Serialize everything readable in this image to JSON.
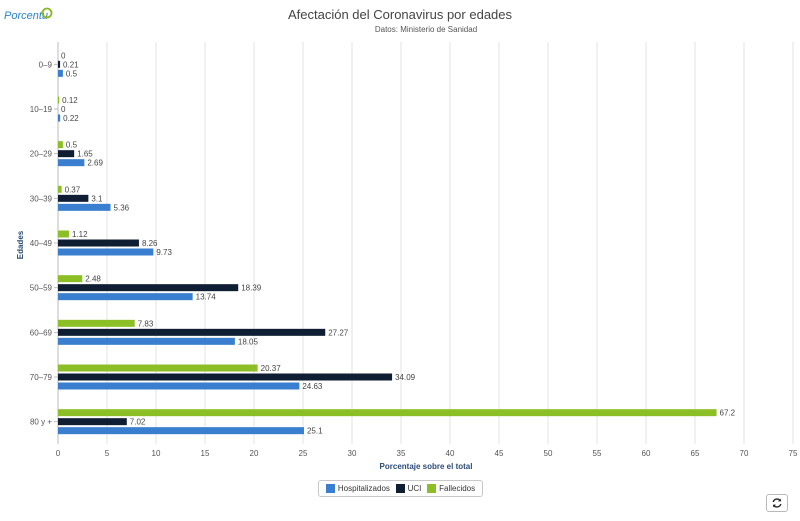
{
  "logo": {
    "text": "Porcentu",
    "color": "#2a83c9",
    "accent": "#8ab821"
  },
  "chart_data": {
    "type": "bar",
    "orientation": "horizontal",
    "title": "Afectación del Coronavirus por edades",
    "subtitle": "Datos: Ministerio de Sanidad",
    "xlabel": "Porcentaje sobre el total",
    "ylabel": "Edades",
    "xlim": [
      0,
      75
    ],
    "xticks": [
      0,
      5,
      10,
      15,
      20,
      25,
      30,
      35,
      40,
      45,
      50,
      55,
      60,
      65,
      70,
      75
    ],
    "grid": true,
    "legend_position": "bottom-center",
    "categories": [
      "0–9",
      "10–19",
      "20–29",
      "30–39",
      "40–49",
      "50–59",
      "60–69",
      "70–79",
      "80 y +"
    ],
    "series": [
      {
        "name": "Fallecidos",
        "color": "#8cbf26",
        "values": [
          0,
          0.12,
          0.5,
          0.37,
          1.12,
          2.48,
          7.83,
          20.37,
          67.2
        ]
      },
      {
        "name": "UCI",
        "color": "#0f1e33",
        "values": [
          0.21,
          0,
          1.65,
          3.1,
          8.26,
          18.39,
          27.27,
          34.09,
          7.02
        ]
      },
      {
        "name": "Hospitalizados",
        "color": "#3a7fcf",
        "values": [
          0.5,
          0.22,
          2.69,
          5.36,
          9.73,
          13.74,
          18.05,
          24.63,
          25.1
        ]
      }
    ]
  },
  "legend": {
    "items": [
      {
        "label": "Hospitalizados",
        "color": "#3a7fcf"
      },
      {
        "label": "UCI",
        "color": "#0f1e33"
      },
      {
        "label": "Fallecidos",
        "color": "#8cbf26"
      }
    ]
  },
  "refresh_icon": "refresh-icon"
}
